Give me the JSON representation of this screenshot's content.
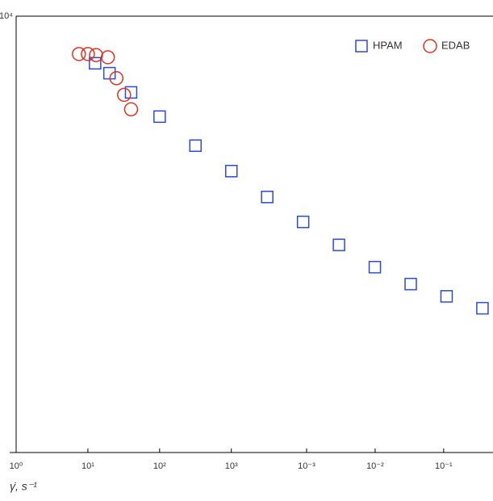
{
  "chart_data": [
    {
      "type": "scatter",
      "x_label": "γ̇, s⁻¹",
      "xscale": "log",
      "yscale": "log",
      "xlim": [
        1,
        4000000
      ],
      "ylim": [
        1,
        10000
      ],
      "xticks": [
        {
          "value": 1,
          "label": "10⁰"
        },
        {
          "value": 10,
          "label": "10¹"
        },
        {
          "value": 100,
          "label": "10²"
        },
        {
          "value": 1000,
          "label": "10³"
        }
      ],
      "yticks": [
        {
          "value": 10000,
          "label": "10⁴"
        }
      ],
      "legend": "top-right",
      "series": [
        {
          "name": "HPAM",
          "color": "#2a4bd7",
          "marker": "square",
          "x": [
            12.6,
            20,
            40,
            100,
            316,
            1000,
            3162,
            10000,
            31623,
            100000,
            316228,
            1000000,
            3162278
          ],
          "values": [
            3700,
            3000,
            2000,
            1200,
            650,
            380,
            220,
            130,
            80,
            50,
            35,
            27,
            21
          ]
        },
        {
          "name": "EDAB",
          "color": "#e0321e",
          "marker": "circle",
          "x": [
            7.5,
            10,
            13,
            19,
            25,
            32,
            40
          ],
          "values": [
            4500,
            4500,
            4400,
            4200,
            2700,
            1900,
            1400
          ]
        }
      ]
    },
    {
      "type": "axis",
      "xscale": "log",
      "xlim": [
        0.001,
        0.4
      ],
      "xticks": [
        {
          "value": 0.001,
          "label": "10⁻³"
        },
        {
          "value": 0.01,
          "label": "10⁻²"
        },
        {
          "value": 0.1,
          "label": "10⁻¹"
        }
      ]
    }
  ]
}
